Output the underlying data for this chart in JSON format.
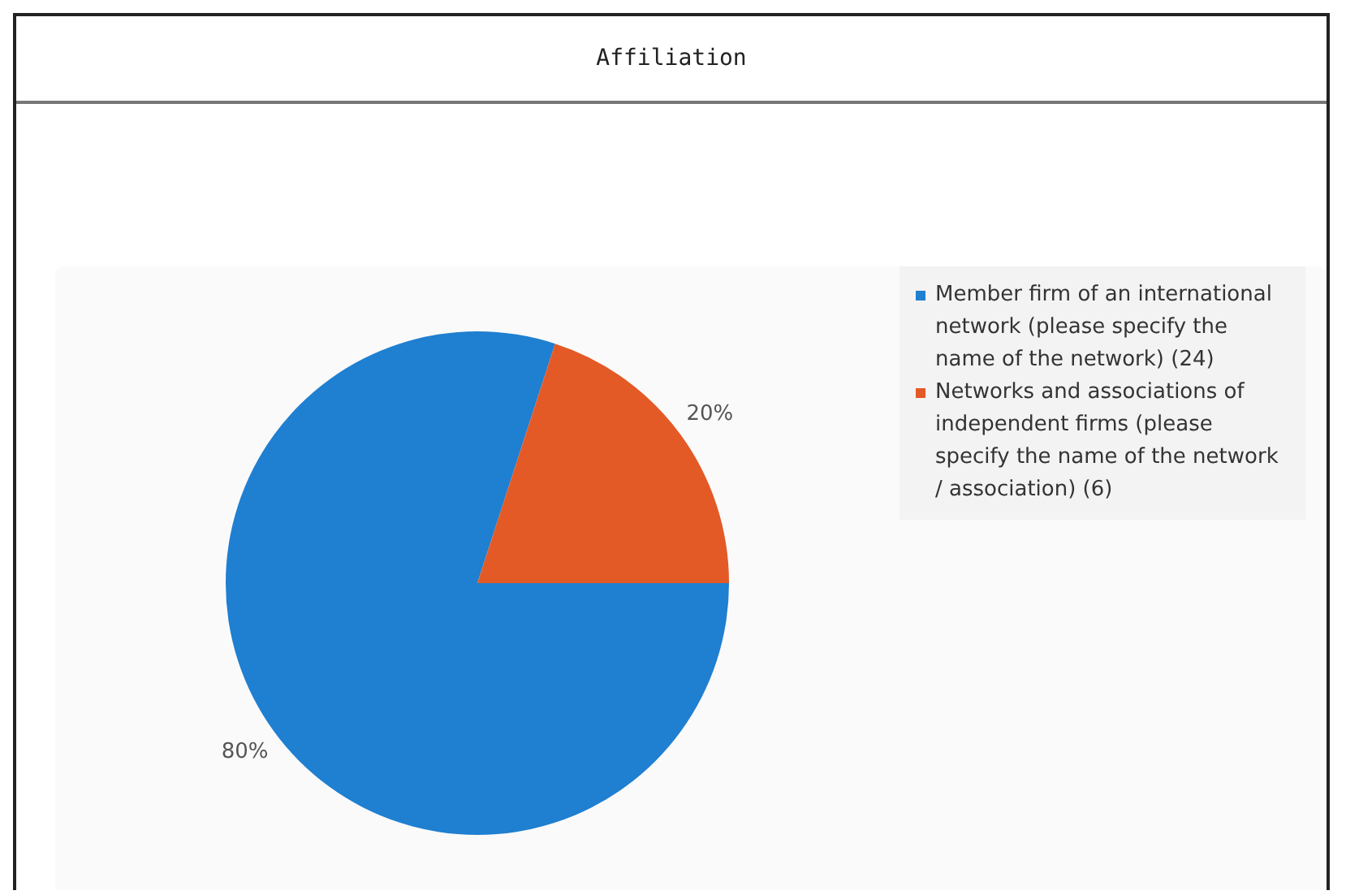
{
  "chart_data": {
    "type": "pie",
    "title": "Affiliation",
    "categories": [
      "Member firm of an international network (please specify the name of the network) (24)",
      "Networks and associations of independent firms (please specify the name of the network / association) (6)"
    ],
    "values": [
      80,
      20
    ],
    "colors": [
      "#1f7fd0",
      "#e35a27"
    ],
    "value_labels": [
      "80%",
      "20%"
    ],
    "legend": "right"
  }
}
